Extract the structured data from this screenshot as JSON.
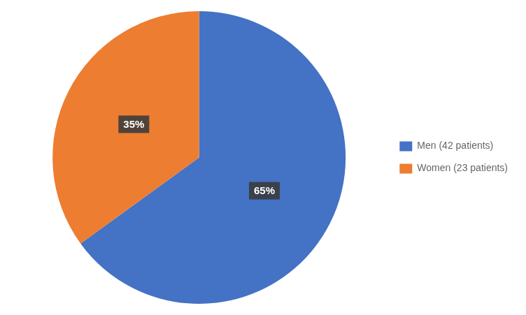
{
  "chart_data": {
    "type": "pie",
    "categories": [
      "Men (42 patients)",
      "Women (23 patients)"
    ],
    "values": [
      65,
      35
    ],
    "value_labels": [
      "65%",
      "35%"
    ],
    "colors": [
      "#4472C4",
      "#ED7D31"
    ],
    "data_labels": true,
    "legend": "right"
  }
}
